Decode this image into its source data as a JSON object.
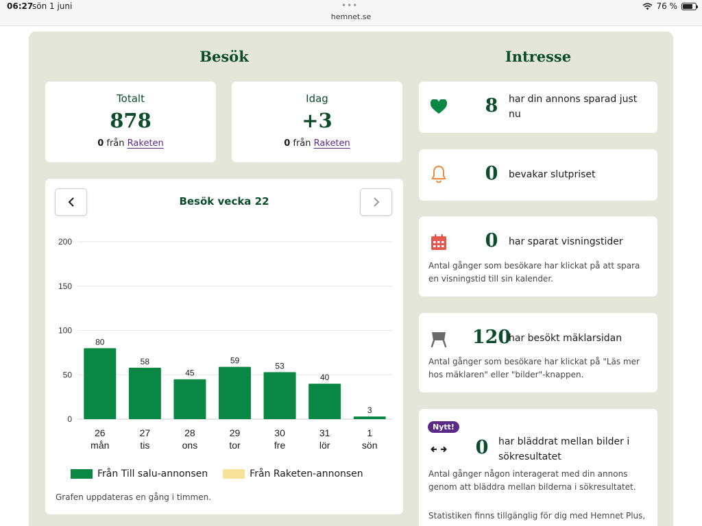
{
  "statusbar": {
    "time": "06:27",
    "date": "sön 1 juni",
    "url": "hemnet.se",
    "battery": "76 %",
    "battery_level": 0.76
  },
  "visits": {
    "title": "Besök",
    "total": {
      "label": "Totalt",
      "value": "878",
      "sub_count": "0",
      "sub_from": "från",
      "sub_link": "Raketen"
    },
    "today": {
      "label": "Idag",
      "value": "+3",
      "sub_count": "0",
      "sub_from": "från",
      "sub_link": "Raketen"
    },
    "chart_title": "Besök vecka 22",
    "legend": [
      "Från Till salu-annonsen",
      "Från Raketen-annonsen"
    ],
    "note": "Grafen uppdateras en gång i timmen."
  },
  "chart_data": {
    "type": "bar",
    "categories": [
      {
        "day": "26",
        "weekday": "mån"
      },
      {
        "day": "27",
        "weekday": "tis"
      },
      {
        "day": "28",
        "weekday": "ons"
      },
      {
        "day": "29",
        "weekday": "tor"
      },
      {
        "day": "30",
        "weekday": "fre"
      },
      {
        "day": "31",
        "weekday": "lör"
      },
      {
        "day": "1",
        "weekday": "sön"
      }
    ],
    "series": [
      {
        "name": "Från Till salu-annonsen",
        "color": "#0a8744",
        "values": [
          80,
          58,
          45,
          59,
          53,
          40,
          3
        ]
      },
      {
        "name": "Från Raketen-annonsen",
        "color": "#f7e29a",
        "values": [
          0,
          0,
          0,
          0,
          0,
          0,
          0
        ]
      }
    ],
    "yticks": [
      0,
      50,
      100,
      150,
      200
    ],
    "ylim": [
      0,
      200
    ],
    "grid": true,
    "legend_position": "bottom"
  },
  "interest": {
    "title": "Intresse",
    "items": [
      {
        "icon": "heart-icon",
        "value": "8",
        "text": "har din annons sparad just nu"
      },
      {
        "icon": "bell-icon",
        "value": "0",
        "text": "bevakar slutpriset"
      },
      {
        "icon": "calendar-icon",
        "value": "0",
        "text": "har sparat visningstider",
        "desc": "Antal gånger som besökare har klickat på att spara en visningstid till sin kalender."
      },
      {
        "icon": "broker-sign-icon",
        "value": "120",
        "text": "har besökt mäklarsidan",
        "desc": "Antal gånger som besökare har klickat på \"Läs mer hos mäklaren\" eller \"bilder\"-knappen."
      },
      {
        "icon": "swap-arrows-icon",
        "badge": "Nytt!",
        "value": "0",
        "text": "har bläddrat mellan bilder i sökresultatet",
        "desc": "Antal gånger någon interagerat med din annons genom att bläddra mellan bilderna i sökresultatet.",
        "desc2": "Statistiken finns tillgänglig för dig med Hemnet Plus,"
      }
    ]
  },
  "colors": {
    "brand_green": "#0b4d2a",
    "bar_green": "#0a8744",
    "link_purple": "#5b2a86",
    "panel_bg": "#e3e6d8"
  }
}
